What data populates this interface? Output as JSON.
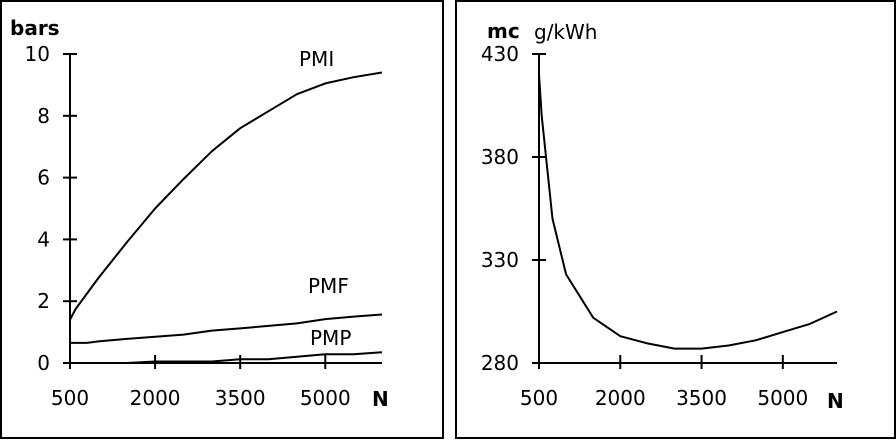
{
  "chart_data": [
    {
      "type": "line",
      "ylabel": "bars",
      "xlabel": "N",
      "xlim": [
        500,
        6000
      ],
      "ylim": [
        0,
        10
      ],
      "x_ticks": [
        500,
        2000,
        3500,
        5000
      ],
      "x_tick_labels": [
        "500",
        "2000",
        "3500",
        "5000"
      ],
      "y_ticks": [
        0,
        2,
        4,
        6,
        8,
        10
      ],
      "y_tick_labels": [
        "0",
        "2",
        "4",
        "6",
        "8",
        "10"
      ],
      "grid": false,
      "legend": "none",
      "series": [
        {
          "name": "PMI",
          "x": [
            500,
            600,
            1000,
            1500,
            2000,
            2500,
            3000,
            3500,
            4000,
            4500,
            5000,
            5500,
            6000
          ],
          "y": [
            1.4,
            1.75,
            2.75,
            3.9,
            5.0,
            5.95,
            6.85,
            7.6,
            8.15,
            8.7,
            9.05,
            9.25,
            9.4
          ]
        },
        {
          "name": "PMF",
          "x": [
            500,
            800,
            1000,
            1500,
            2000,
            2500,
            3000,
            3500,
            4000,
            4500,
            5000,
            5500,
            6000
          ],
          "y": [
            0.65,
            0.65,
            0.7,
            0.78,
            0.85,
            0.92,
            1.05,
            1.12,
            1.2,
            1.28,
            1.42,
            1.5,
            1.57
          ]
        },
        {
          "name": "PMP",
          "x": [
            500,
            1000,
            1500,
            2000,
            2500,
            3000,
            3500,
            4000,
            4500,
            5000,
            5500,
            6000
          ],
          "y": [
            0.0,
            0.0,
            0.0,
            0.05,
            0.05,
            0.05,
            0.12,
            0.12,
            0.2,
            0.28,
            0.28,
            0.35
          ]
        }
      ]
    },
    {
      "type": "line",
      "ylabel": "mc",
      "units": "g/kWh",
      "xlabel": "N",
      "xlim": [
        500,
        6000
      ],
      "ylim": [
        280,
        430
      ],
      "x_ticks": [
        500,
        2000,
        3500,
        5000
      ],
      "x_tick_labels": [
        "500",
        "2000",
        "3500",
        "5000"
      ],
      "y_ticks": [
        280,
        330,
        380,
        430
      ],
      "y_tick_labels": [
        "280",
        "330",
        "380",
        "430"
      ],
      "grid": false,
      "legend": "none",
      "series": [
        {
          "x": [
            500,
            550,
            650,
            750,
            1000,
            1500,
            2000,
            2500,
            3000,
            3500,
            4000,
            4500,
            5000,
            5500,
            6000
          ],
          "y": [
            420,
            400,
            375,
            350,
            323,
            302,
            293,
            289.5,
            287,
            287,
            288.5,
            291,
            295,
            299,
            305
          ]
        }
      ]
    }
  ]
}
